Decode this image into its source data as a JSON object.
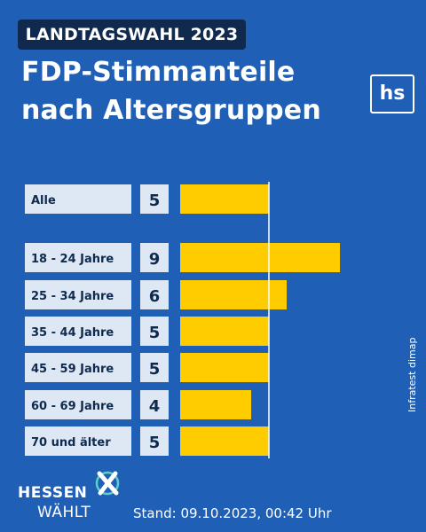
{
  "header": {
    "tag": "LANDTAGSWAHL 2023",
    "title_line1": "FDP-Stimmanteile",
    "title_line2": "nach Altersgruppen",
    "logo": "hs"
  },
  "colors": {
    "background": "#1f5fb5",
    "bar": "#ffcc00",
    "label_box": "#dde8f4",
    "text_dark": "#0f2a4e",
    "tag_bg": "#0f2a4e"
  },
  "chart_data": {
    "type": "bar",
    "orientation": "horizontal",
    "categories": [
      "Alle",
      "18 - 24 Jahre",
      "25 - 34 Jahre",
      "35 - 44 Jahre",
      "45 - 59 Jahre",
      "60 - 69 Jahre",
      "70 und älter"
    ],
    "values": [
      5,
      9,
      6,
      5,
      5,
      4,
      5
    ],
    "reference_line_value": 5,
    "unit": "%"
  },
  "footer": {
    "source": "Infratest dimap",
    "brand_line1": "HESSEN",
    "brand_line2": "WÄHLT",
    "stand": "Stand: 09.10.2023, 00:42 Uhr"
  }
}
